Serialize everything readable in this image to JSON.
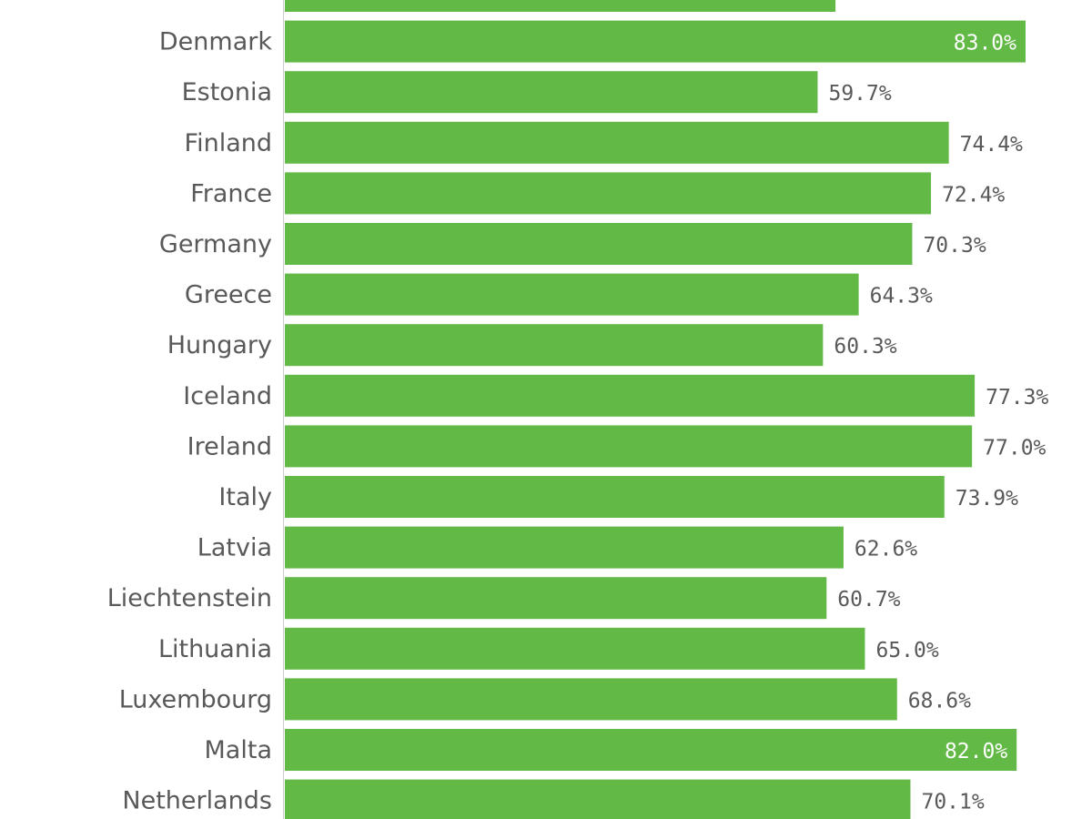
{
  "chart_data": {
    "type": "bar",
    "orientation": "horizontal",
    "bar_color": "#62b946",
    "label_color_outside": "#595959",
    "label_color_inside": "#ffffff",
    "categories": [
      "",
      "Denmark",
      "Estonia",
      "Finland",
      "France",
      "Germany",
      "Greece",
      "Hungary",
      "Iceland",
      "Ireland",
      "Italy",
      "Latvia",
      "Liechtenstein",
      "Lithuania",
      "Luxembourg",
      "Malta",
      "Netherlands"
    ],
    "values": [
      61.7,
      83.0,
      59.7,
      74.4,
      72.4,
      70.3,
      64.3,
      60.3,
      77.3,
      77.0,
      73.9,
      62.6,
      60.7,
      65.0,
      68.6,
      82.0,
      70.1
    ],
    "value_labels": [
      "",
      "83.0%",
      "59.7%",
      "74.4%",
      "72.4%",
      "70.3%",
      "64.3%",
      "60.3%",
      "77.3%",
      "77.0%",
      "73.9%",
      "62.6%",
      "60.7%",
      "65.0%",
      "68.6%",
      "82.0%",
      "70.1%"
    ],
    "xlim": [
      0,
      83
    ],
    "title": "",
    "xlabel": "",
    "ylabel": "",
    "grid": false,
    "legend": "none"
  }
}
